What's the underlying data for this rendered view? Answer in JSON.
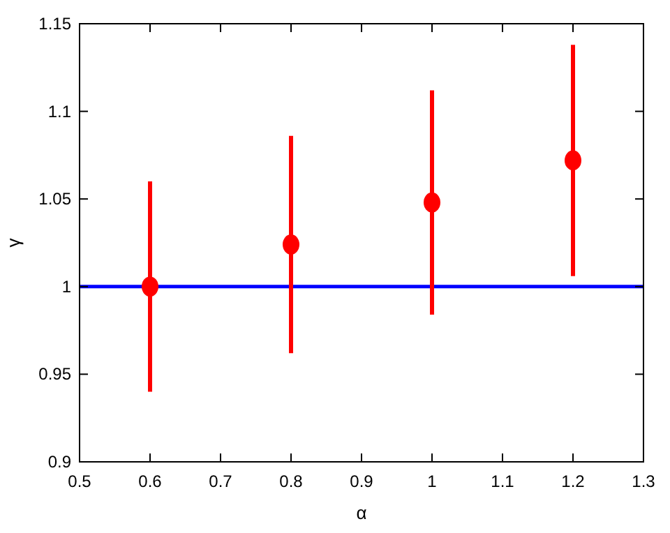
{
  "chart_data": {
    "type": "scatter",
    "xlabel": "α",
    "ylabel": "γ",
    "x": [
      0.6,
      0.8,
      1.0,
      1.2
    ],
    "series": [
      {
        "color": "#ff0000",
        "values": [
          1.0,
          1.024,
          1.048,
          1.072
        ],
        "errors": [
          [
            0.94,
            1.06
          ],
          [
            0.962,
            1.086
          ],
          [
            0.984,
            1.112
          ],
          [
            1.006,
            1.138
          ]
        ]
      }
    ],
    "marker": "circle",
    "xlim": [
      0.5,
      1.3
    ],
    "xticks": [
      0.5,
      0.6,
      0.7,
      0.8,
      0.9,
      1,
      1.1,
      1.2,
      1.3
    ],
    "ylim": [
      0.9,
      1.15
    ],
    "yticks": [
      0.9,
      0.95,
      1,
      1.05,
      1.1,
      1.15
    ],
    "ref_lines": [
      {
        "axis": "y",
        "value": 1,
        "color": "#0000ff"
      }
    ]
  }
}
